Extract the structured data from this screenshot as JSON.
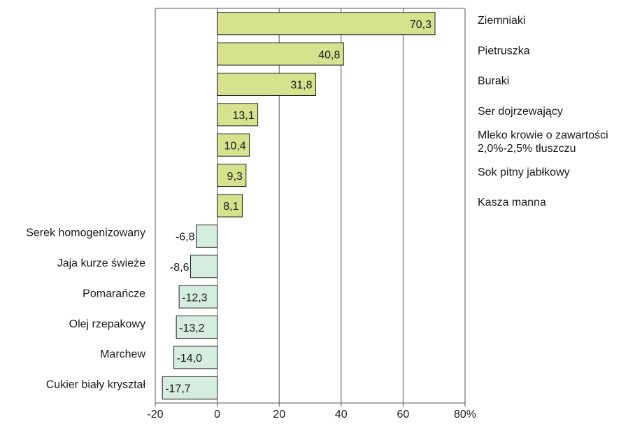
{
  "chart_data": {
    "type": "barh",
    "categories": [
      "Ziemniaki",
      "Pietruszka",
      "Buraki",
      "Ser dojrzewający",
      "Mleko krowie o zawartości\n2,0%-2,5% tłuszczu",
      "Sok pitny jabłkowy",
      "Kasza manna",
      "Serek homogenizowany",
      "Jaja kurze świeże",
      "Pomarańcze",
      "Olej rzepakowy",
      "Marchew",
      "Cukier biały kryształ"
    ],
    "values": [
      70.3,
      40.8,
      31.8,
      13.1,
      10.4,
      9.3,
      8.1,
      -6.8,
      -8.6,
      -12.3,
      -13.2,
      -14.0,
      -17.7
    ],
    "value_labels": [
      "70,3",
      "40,8",
      "31,8",
      "13,1",
      "10,4",
      "9,3",
      "8,1",
      "-6,8",
      "-8,6",
      "-12,3",
      "-13,2",
      "-14,0",
      "-17,7"
    ],
    "positive_color": "#d6e28e",
    "negative_color": "#d5ede1",
    "xlim": [
      -20,
      80
    ],
    "xticks": [
      -20,
      0,
      20,
      40,
      60,
      {
        "value": 80,
        "label": "80%"
      }
    ],
    "grid": true
  }
}
